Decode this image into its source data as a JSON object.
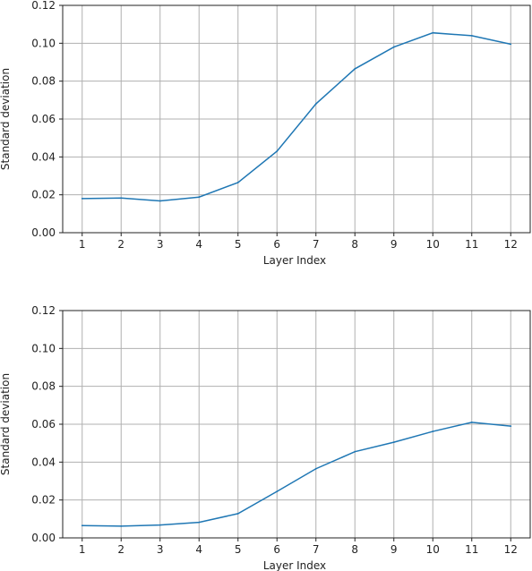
{
  "chart_data": [
    {
      "type": "line",
      "title": "",
      "xlabel": "Layer Index",
      "ylabel": "Standard deviation",
      "x": [
        1,
        2,
        3,
        4,
        5,
        6,
        7,
        8,
        9,
        10,
        11,
        12
      ],
      "x_ticks": [
        "1",
        "2",
        "3",
        "4",
        "5",
        "6",
        "7",
        "8",
        "9",
        "10",
        "11",
        "12"
      ],
      "y_ticks": [
        "0.00",
        "0.02",
        "0.04",
        "0.06",
        "0.08",
        "0.10",
        "0.12"
      ],
      "ylim": [
        0,
        0.12
      ],
      "grid": true,
      "series": [
        {
          "values": [
            0.018,
            0.0183,
            0.0168,
            0.0188,
            0.0265,
            0.043,
            0.068,
            0.0865,
            0.098,
            0.1055,
            0.104,
            0.0995
          ],
          "color": "#1f77b4"
        }
      ]
    },
    {
      "type": "line",
      "title": "",
      "xlabel": "Layer Index",
      "ylabel": "Standard deviation",
      "x": [
        1,
        2,
        3,
        4,
        5,
        6,
        7,
        8,
        9,
        10,
        11,
        12
      ],
      "x_ticks": [
        "1",
        "2",
        "3",
        "4",
        "5",
        "6",
        "7",
        "8",
        "9",
        "10",
        "11",
        "12"
      ],
      "y_ticks": [
        "0.00",
        "0.02",
        "0.04",
        "0.06",
        "0.08",
        "0.10",
        "0.12"
      ],
      "ylim": [
        0,
        0.12
      ],
      "grid": true,
      "series": [
        {
          "values": [
            0.0065,
            0.0062,
            0.0068,
            0.0082,
            0.0128,
            0.0245,
            0.0365,
            0.0455,
            0.0505,
            0.0562,
            0.061,
            0.059
          ],
          "color": "#1f77b4"
        }
      ]
    }
  ]
}
